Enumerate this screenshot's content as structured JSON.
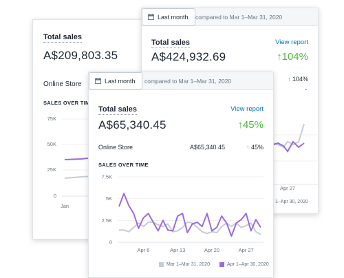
{
  "back_card": {
    "title": "Total sales",
    "amount": "A$209,803.35",
    "store_label": "Online Store",
    "section": "SALES OVER TIME",
    "y_ticks": [
      "75K",
      "50K",
      "25K",
      "0"
    ],
    "x_ticks": [
      "Jan"
    ]
  },
  "mid_card": {
    "date_button": "Last month",
    "compared": "compared to Mar 1–Mar 31, 2020",
    "title": "Total sales",
    "view_report": "View report",
    "amount": "A$424,932.69",
    "change": "104%",
    "store_change": "104%",
    "dash": "-",
    "x_ticks": [
      "Apr 27"
    ],
    "legend_partial": "1–Apr 30, 2020"
  },
  "front_card": {
    "date_button": "Last month",
    "compared": "compared to Mar 1–Mar 31, 2020",
    "title": "Total sales",
    "view_report": "View report",
    "amount": "A$65,340.45",
    "change": "45%",
    "store_label": "Online Store",
    "store_amount": "A$65,340.45",
    "store_change": "45%",
    "section": "SALES OVER TIME",
    "legend": [
      {
        "label": "Mar 1–Mar 31, 2020",
        "color": "#c4cdd5"
      },
      {
        "label": "Apr 1–Apr 30, 2020",
        "color": "#9c6ade"
      }
    ]
  },
  "chart_data": {
    "type": "line",
    "ylabel": "",
    "xlabel": "",
    "ylim": [
      0,
      7500
    ],
    "y_ticks": [
      "7.5K",
      "5K",
      "2.5K",
      "0"
    ],
    "x_tick_labels": [
      "Apr 6",
      "Apr 13",
      "Apr 20",
      "Apr 27"
    ],
    "x_tick_days": [
      6,
      13,
      20,
      27
    ],
    "series": [
      {
        "name": "Apr 1–Apr 30, 2020",
        "color": "#9c6ade",
        "x": [
          1,
          2,
          3,
          4,
          5,
          6,
          7,
          8,
          9,
          10,
          11,
          12,
          13,
          14,
          15,
          16,
          17,
          18,
          19,
          20,
          21,
          22,
          23,
          24,
          25,
          26,
          27,
          28,
          29,
          30
        ],
        "values": [
          4100,
          5600,
          4200,
          3300,
          1600,
          2800,
          3300,
          2300,
          1300,
          2500,
          1400,
          1300,
          3000,
          3300,
          1100,
          2100,
          2300,
          1800,
          3300,
          1300,
          1700,
          3000,
          2200,
          700,
          2200,
          2600,
          3300,
          1300,
          2600,
          1700
        ]
      },
      {
        "name": "Mar 1–Mar 31, 2020",
        "color": "#c4cdd5",
        "x": [
          1,
          2,
          3,
          4,
          5,
          6,
          7,
          8,
          9,
          10,
          11,
          12,
          13,
          14,
          15,
          16,
          17,
          18,
          19,
          20,
          21,
          22,
          23,
          24,
          25,
          26,
          27,
          28,
          29,
          30
        ],
        "values": [
          1400,
          1400,
          1200,
          1700,
          2200,
          1800,
          2300,
          2300,
          2000,
          1800,
          2100,
          1200,
          1300,
          1700,
          2300,
          2200,
          1700,
          1200,
          1000,
          1200,
          1100,
          1800,
          2200,
          1800,
          2200,
          1700,
          1900,
          2200,
          1200,
          900
        ]
      }
    ]
  }
}
